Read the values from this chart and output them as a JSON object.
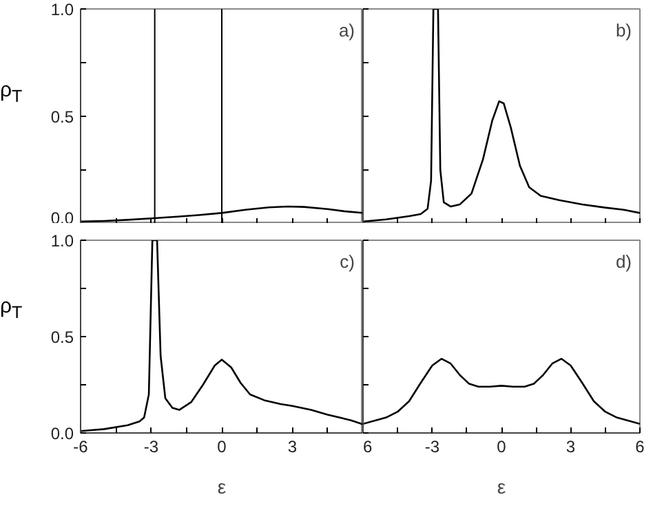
{
  "chart_data": [
    {
      "type": "line",
      "ylabel": "ρ$_{T}$",
      "annotations": [
        "a)"
      ],
      "tick_labels": "y",
      "xlim": [
        -6,
        6
      ],
      "ylim": [
        0,
        1.0
      ],
      "xticks": [
        {
          "value": -6,
          "label": null
        },
        {
          "value": -4.5,
          "label": null
        },
        {
          "value": -3,
          "label": null
        },
        {
          "value": -1.5,
          "label": null
        },
        {
          "value": 0,
          "label": null
        },
        {
          "value": 1.5,
          "label": null
        },
        {
          "value": 3,
          "label": null
        },
        {
          "value": 4.5,
          "label": null
        },
        {
          "value": 6,
          "label": null
        }
      ],
      "yticks": [
        {
          "value": 0,
          "label": "0.0"
        },
        {
          "value": 0.25,
          "label": null
        },
        {
          "value": 0.5,
          "label": "0.5"
        },
        {
          "value": 0.75,
          "label": null
        },
        {
          "value": 1.0,
          "label": "1.0"
        }
      ],
      "grid": false,
      "ref_lines": [
        {
          "axis": "x",
          "value": -2.85,
          "color": "#000000"
        },
        {
          "axis": "x",
          "value": 0,
          "color": "#000000"
        }
      ],
      "series": [
        {
          "color": "#000000",
          "x": [
            -6,
            -5,
            -4,
            -3,
            -2,
            -1,
            0,
            1,
            2,
            2.8,
            3.5,
            4.5,
            5.2,
            6
          ],
          "values": [
            0.01,
            0.013,
            0.018,
            0.025,
            0.032,
            0.04,
            0.05,
            0.065,
            0.076,
            0.08,
            0.078,
            0.068,
            0.058,
            0.05
          ]
        }
      ]
    },
    {
      "type": "line",
      "annotations": [
        "b)"
      ],
      "tick_labels": false,
      "xlim": [
        -6,
        6
      ],
      "ylim": [
        0,
        1.0
      ],
      "xticks": [
        {
          "value": -6,
          "label": null
        },
        {
          "value": -4.5,
          "label": null
        },
        {
          "value": -3,
          "label": null
        },
        {
          "value": -1.5,
          "label": null
        },
        {
          "value": 0,
          "label": null
        },
        {
          "value": 1.5,
          "label": null
        },
        {
          "value": 3,
          "label": null
        },
        {
          "value": 4.5,
          "label": null
        },
        {
          "value": 6,
          "label": null
        }
      ],
      "yticks": [
        {
          "value": 0,
          "label": null
        },
        {
          "value": 0.25,
          "label": null
        },
        {
          "value": 0.5,
          "label": null
        },
        {
          "value": 0.75,
          "label": null
        },
        {
          "value": 1.0,
          "label": null
        }
      ],
      "grid": false,
      "series": [
        {
          "color": "#000000",
          "x": [
            -6,
            -5,
            -4,
            -3.5,
            -3.2,
            -3.05,
            -2.95,
            -2.85,
            -2.75,
            -2.65,
            -2.5,
            -2.2,
            -1.8,
            -1.3,
            -0.8,
            -0.4,
            -0.1,
            0.1,
            0.4,
            0.8,
            1.2,
            1.7,
            2.5,
            3.5,
            4.5,
            5.3,
            6
          ],
          "values": [
            0.01,
            0.02,
            0.035,
            0.045,
            0.07,
            0.2,
            1.0,
            1.0,
            1.0,
            0.25,
            0.1,
            0.08,
            0.09,
            0.14,
            0.3,
            0.48,
            0.57,
            0.56,
            0.45,
            0.27,
            0.17,
            0.13,
            0.11,
            0.09,
            0.075,
            0.065,
            0.05
          ]
        }
      ]
    },
    {
      "type": "line",
      "ylabel": "ρ$_{T}$",
      "xlabel": "ε",
      "annotations": [
        "c)"
      ],
      "xlim": [
        -6,
        6
      ],
      "ylim": [
        0,
        1.0
      ],
      "xticks": [
        {
          "value": -6,
          "label": "-6"
        },
        {
          "value": -4.5,
          "label": null
        },
        {
          "value": -3,
          "label": "-3"
        },
        {
          "value": -1.5,
          "label": null
        },
        {
          "value": 0,
          "label": "0"
        },
        {
          "value": 1.5,
          "label": null
        },
        {
          "value": 3,
          "label": "3"
        },
        {
          "value": 4.5,
          "label": null
        },
        {
          "value": 6,
          "label": null
        }
      ],
      "yticks": [
        {
          "value": 0,
          "label": "0.0"
        },
        {
          "value": 0.25,
          "label": null
        },
        {
          "value": 0.5,
          "label": "0.5"
        },
        {
          "value": 0.75,
          "label": null
        },
        {
          "value": 1.0,
          "label": "1.0"
        }
      ],
      "grid": false,
      "series": [
        {
          "color": "#000000",
          "x": [
            -6,
            -5,
            -4,
            -3.5,
            -3.3,
            -3.1,
            -2.95,
            -2.85,
            -2.75,
            -2.6,
            -2.4,
            -2.1,
            -1.8,
            -1.3,
            -0.8,
            -0.3,
            0,
            0.4,
            0.8,
            1.2,
            1.8,
            2.5,
            3,
            3.8,
            4.5,
            5,
            5.5,
            6
          ],
          "values": [
            0.01,
            0.02,
            0.04,
            0.06,
            0.08,
            0.2,
            1.0,
            1.0,
            1.0,
            0.4,
            0.18,
            0.13,
            0.12,
            0.16,
            0.25,
            0.35,
            0.38,
            0.34,
            0.26,
            0.2,
            0.17,
            0.15,
            0.14,
            0.12,
            0.095,
            0.08,
            0.065,
            0.045
          ]
        }
      ]
    },
    {
      "type": "line",
      "xlabel": "ε",
      "annotations": [
        "d)"
      ],
      "tick_labels": "x",
      "xlim": [
        -6,
        6
      ],
      "ylim": [
        0,
        1.0
      ],
      "xticks": [
        {
          "value": -6,
          "label": "6"
        },
        {
          "value": -4.5,
          "label": null
        },
        {
          "value": -3,
          "label": "-3"
        },
        {
          "value": -1.5,
          "label": null
        },
        {
          "value": 0,
          "label": "0"
        },
        {
          "value": 1.5,
          "label": null
        },
        {
          "value": 3,
          "label": "3"
        },
        {
          "value": 4.5,
          "label": null
        },
        {
          "value": 6,
          "label": "6"
        }
      ],
      "yticks": [
        {
          "value": 0,
          "label": null
        },
        {
          "value": 0.25,
          "label": null
        },
        {
          "value": 0.5,
          "label": null
        },
        {
          "value": 0.75,
          "label": null
        },
        {
          "value": 1.0,
          "label": null
        }
      ],
      "grid": false,
      "series": [
        {
          "color": "#000000",
          "x": [
            -6,
            -5,
            -4.5,
            -4,
            -3.5,
            -3,
            -2.6,
            -2.2,
            -1.8,
            -1.4,
            -1,
            -0.5,
            0,
            0.5,
            1,
            1.4,
            1.8,
            2.2,
            2.6,
            3,
            3.5,
            4,
            4.5,
            5,
            6
          ],
          "values": [
            0.047,
            0.08,
            0.11,
            0.165,
            0.26,
            0.35,
            0.385,
            0.36,
            0.3,
            0.255,
            0.24,
            0.24,
            0.245,
            0.24,
            0.24,
            0.255,
            0.3,
            0.36,
            0.385,
            0.35,
            0.26,
            0.165,
            0.11,
            0.08,
            0.047
          ]
        }
      ]
    }
  ]
}
